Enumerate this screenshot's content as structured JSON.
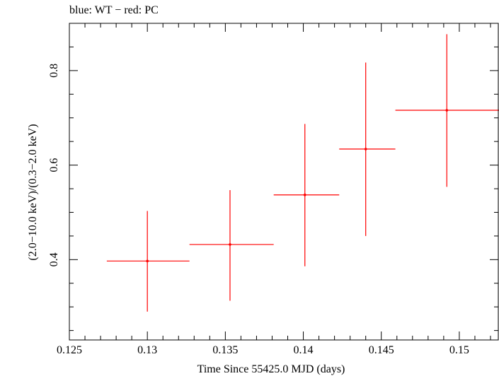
{
  "chart_data": {
    "type": "scatter",
    "title": "blue: WT − red: PC",
    "xlabel": "Time Since 55425.0 MJD (days)",
    "ylabel": "(2.0−10.0 keV)/(0.3−2.0 keV)",
    "xlim": [
      0.125,
      0.1525
    ],
    "ylim": [
      0.23,
      0.9
    ],
    "x_ticks": [
      {
        "value": 0.125,
        "label": "0.125"
      },
      {
        "value": 0.13,
        "label": "0.13"
      },
      {
        "value": 0.135,
        "label": "0.135"
      },
      {
        "value": 0.14,
        "label": "0.14"
      },
      {
        "value": 0.145,
        "label": "0.145"
      },
      {
        "value": 0.15,
        "label": "0.15"
      }
    ],
    "y_ticks": [
      {
        "value": 0.4,
        "label": "0.4"
      },
      {
        "value": 0.6,
        "label": "0.6"
      },
      {
        "value": 0.8,
        "label": "0.8"
      }
    ],
    "grid": false,
    "series": [
      {
        "color": "#ff0000",
        "points": [
          {
            "x": 0.13,
            "xerr_low": 0.1274,
            "xerr_high": 0.1327,
            "y": 0.397,
            "yerr_low": 0.29,
            "yerr_high": 0.503
          },
          {
            "x": 0.1353,
            "xerr_low": 0.1327,
            "xerr_high": 0.1381,
            "y": 0.432,
            "yerr_low": 0.313,
            "yerr_high": 0.547
          },
          {
            "x": 0.1401,
            "xerr_low": 0.1381,
            "xerr_high": 0.1423,
            "y": 0.537,
            "yerr_low": 0.386,
            "yerr_high": 0.687
          },
          {
            "x": 0.144,
            "xerr_low": 0.1423,
            "xerr_high": 0.1459,
            "y": 0.634,
            "yerr_low": 0.45,
            "yerr_high": 0.817
          },
          {
            "x": 0.1492,
            "xerr_low": 0.1459,
            "xerr_high": 0.1526,
            "y": 0.716,
            "yerr_low": 0.554,
            "yerr_high": 0.877
          }
        ]
      }
    ]
  }
}
